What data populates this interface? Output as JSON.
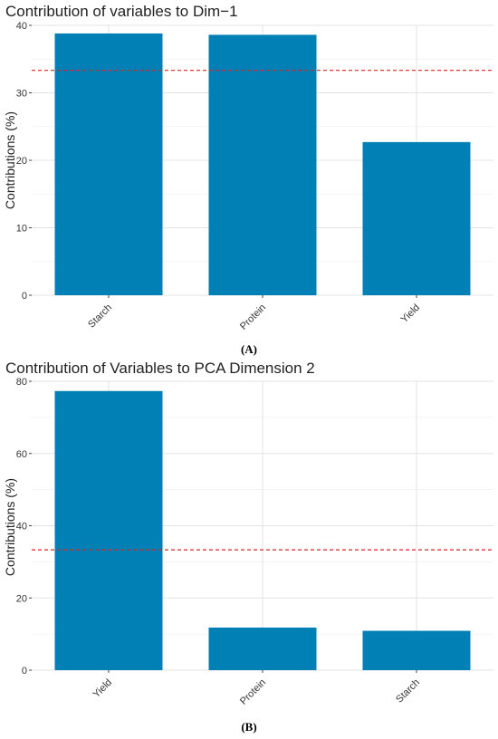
{
  "panels": [
    {
      "label": "(A)"
    },
    {
      "label": "(B)"
    }
  ],
  "chart_data": [
    {
      "type": "bar",
      "title": "Contribution of variables to Dim−1",
      "xlabel": "",
      "ylabel": "Contributions (%)",
      "categories": [
        "Starch",
        "Protein",
        "Yield"
      ],
      "values": [
        38.8,
        38.6,
        22.7
      ],
      "ylim": [
        0,
        40
      ],
      "yticks": [
        0,
        10,
        20,
        30,
        40
      ],
      "reference_line": 33.33,
      "bar_color": "#0080b4",
      "reference_color": "#d62728",
      "grid": true
    },
    {
      "type": "bar",
      "title": "Contribution of Variables to PCA Dimension 2",
      "xlabel": "",
      "ylabel": "Contributions (%)",
      "categories": [
        "Yield",
        "Protein",
        "Starch"
      ],
      "values": [
        77.3,
        11.8,
        10.9
      ],
      "ylim": [
        0,
        80
      ],
      "yticks": [
        0,
        20,
        40,
        60,
        80
      ],
      "reference_line": 33.33,
      "bar_color": "#0080b4",
      "reference_color": "#d62728",
      "grid": true
    }
  ]
}
